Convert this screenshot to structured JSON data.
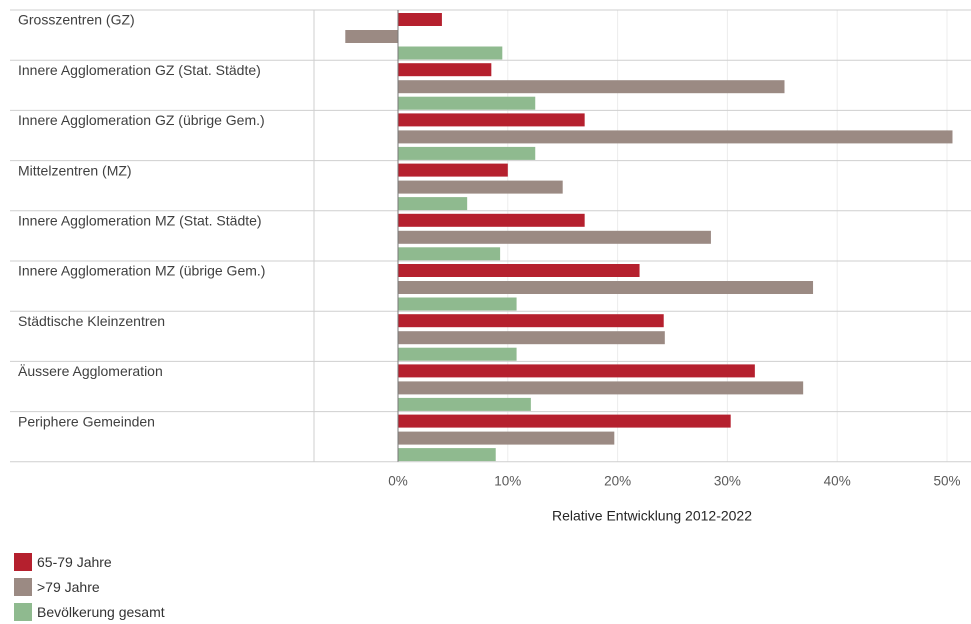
{
  "chart_data": {
    "type": "bar",
    "orientation": "horizontal",
    "categories": [
      "Grosszentren (GZ)",
      "Innere Agglomeration GZ (Stat. Städte)",
      "Innere Agglomeration GZ (übrige Gem.)",
      "Mittelzentren (MZ)",
      "Innere Agglomeration MZ (Stat. Städte)",
      "Innere Agglomeration MZ (übrige Gem.)",
      "Städtische Kleinzentren",
      "Äussere Agglomeration",
      "Periphere Gemeinden"
    ],
    "series": [
      {
        "name": "65-79 Jahre",
        "color": "#b5202e",
        "values": [
          4.0,
          8.5,
          17.0,
          10.0,
          17.0,
          22.0,
          24.2,
          32.5,
          30.3
        ]
      },
      {
        "name": ">79 Jahre",
        "color": "#9b8a83",
        "values": [
          -4.8,
          35.2,
          50.5,
          15.0,
          28.5,
          37.8,
          24.3,
          36.9,
          19.7
        ]
      },
      {
        "name": "Bevölkerung gesamt",
        "color": "#8fba8f",
        "values": [
          9.5,
          12.5,
          12.5,
          6.3,
          9.3,
          10.8,
          10.8,
          12.1,
          8.9
        ]
      }
    ],
    "xlabel": "Relative Entwicklung 2012-2022",
    "xlim": [
      -7.6,
      52
    ],
    "xticks": [
      0,
      10,
      20,
      30,
      40,
      50
    ],
    "xtick_labels": [
      "0%",
      "10%",
      "20%",
      "30%",
      "40%",
      "50%"
    ],
    "legend_position": "bottom-left",
    "grid": true
  }
}
